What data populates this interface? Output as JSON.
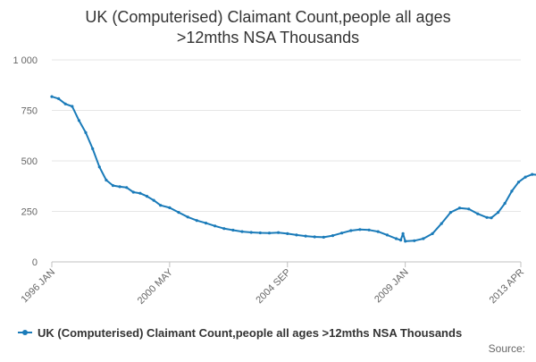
{
  "chart_data": {
    "type": "line",
    "title_lines": [
      "UK (Computerised) Claimant Count,people all ages",
      ">12mths NSA Thousands"
    ],
    "xlabel": "",
    "ylabel": "",
    "ylim": [
      0,
      1000
    ],
    "yticks": [
      0,
      250,
      500,
      750,
      1000
    ],
    "ytick_labels": [
      "0",
      "250",
      "500",
      "750",
      "1 000"
    ],
    "xticks": [
      "1996-01",
      "2000-05",
      "2004-09",
      "2009-01",
      "2013-04"
    ],
    "xtick_labels": [
      "1996 JAN",
      "2000 MAY",
      "2004 SEP",
      "2009 JAN",
      "2013 APR"
    ],
    "grid": "horizontal",
    "legend_position": "bottom",
    "color": "#1a7bb9",
    "series": [
      {
        "name": "UK (Computerised) Claimant Count,people all ages >12mths NSA Thousands",
        "points": [
          [
            "1996-01",
            818
          ],
          [
            "1996-04",
            808
          ],
          [
            "1996-07",
            782
          ],
          [
            "1996-10",
            770
          ],
          [
            "1997-01",
            700
          ],
          [
            "1997-04",
            640
          ],
          [
            "1997-07",
            560
          ],
          [
            "1997-10",
            470
          ],
          [
            "1998-01",
            405
          ],
          [
            "1998-04",
            378
          ],
          [
            "1998-07",
            372
          ],
          [
            "1998-10",
            368
          ],
          [
            "1999-01",
            345
          ],
          [
            "1999-04",
            340
          ],
          [
            "1999-07",
            325
          ],
          [
            "1999-10",
            305
          ],
          [
            "2000-01",
            280
          ],
          [
            "2000-05",
            268
          ],
          [
            "2000-09",
            245
          ],
          [
            "2001-01",
            222
          ],
          [
            "2001-05",
            205
          ],
          [
            "2001-09",
            192
          ],
          [
            "2002-01",
            178
          ],
          [
            "2002-05",
            165
          ],
          [
            "2002-09",
            157
          ],
          [
            "2003-01",
            150
          ],
          [
            "2003-05",
            146
          ],
          [
            "2003-09",
            144
          ],
          [
            "2004-01",
            143
          ],
          [
            "2004-05",
            145
          ],
          [
            "2004-09",
            140
          ],
          [
            "2005-01",
            133
          ],
          [
            "2005-05",
            128
          ],
          [
            "2005-09",
            124
          ],
          [
            "2006-01",
            122
          ],
          [
            "2006-05",
            130
          ],
          [
            "2006-09",
            143
          ],
          [
            "2007-01",
            155
          ],
          [
            "2007-05",
            160
          ],
          [
            "2007-09",
            158
          ],
          [
            "2008-01",
            150
          ],
          [
            "2008-05",
            133
          ],
          [
            "2008-09",
            115
          ],
          [
            "2008-11",
            108
          ],
          [
            "2008-12",
            140
          ],
          [
            "2009-01",
            102
          ],
          [
            "2009-05",
            105
          ],
          [
            "2009-09",
            115
          ],
          [
            "2010-01",
            140
          ],
          [
            "2010-05",
            190
          ],
          [
            "2010-09",
            245
          ],
          [
            "2011-01",
            267
          ],
          [
            "2011-05",
            262
          ],
          [
            "2011-09",
            238
          ],
          [
            "2012-01",
            220
          ],
          [
            "2012-03",
            218
          ],
          [
            "2012-06",
            245
          ],
          [
            "2012-09",
            290
          ],
          [
            "2012-12",
            350
          ],
          [
            "2013-03",
            395
          ],
          [
            "2013-06",
            420
          ],
          [
            "2013-09",
            433
          ],
          [
            "2013-12",
            430
          ],
          [
            "2014-03",
            433
          ]
        ]
      }
    ],
    "source_label": "Source:"
  }
}
